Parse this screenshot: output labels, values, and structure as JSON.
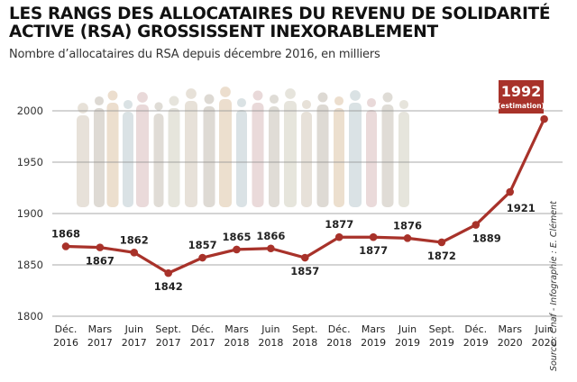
{
  "title": "LES RANGS DES ALLOCATAIRES DU REVENU DE SOLIDARITÉ ACTIVE (RSA) GROSSISSENT INEXORABLEMENT",
  "subtitle": "Nombre d’allocataires du RSA depuis décembre 2016, en milliers",
  "source": "Source : Cnaf - Infographie : E. Clément",
  "colors": {
    "line": "#a8322a",
    "callout_bg": "#a8322a",
    "grid": "#8c8c8c",
    "silhouettes": "#d9d5cf"
  },
  "chart_data": {
    "type": "line",
    "title": "LES RANGS DES ALLOCATAIRES DU REVENU DE SOLIDARITÉ ACTIVE (RSA) GROSSISSENT INEXORABLEMENT",
    "ylabel": "",
    "xlabel": "",
    "ylim": [
      1800,
      2000
    ],
    "yticks": [
      1800,
      1850,
      1900,
      1950,
      2000
    ],
    "grid": true,
    "categories": [
      {
        "line1": "Déc.",
        "line2": "2016"
      },
      {
        "line1": "Mars",
        "line2": "2017"
      },
      {
        "line1": "Juin",
        "line2": "2017"
      },
      {
        "line1": "Sept.",
        "line2": "2017"
      },
      {
        "line1": "Déc.",
        "line2": "2017"
      },
      {
        "line1": "Mars",
        "line2": "2018"
      },
      {
        "line1": "Juin",
        "line2": "2018"
      },
      {
        "line1": "Sept.",
        "line2": "2018"
      },
      {
        "line1": "Déc.",
        "line2": "2018"
      },
      {
        "line1": "Mars",
        "line2": "2019"
      },
      {
        "line1": "Juin",
        "line2": "2019"
      },
      {
        "line1": "Sept.",
        "line2": "2019"
      },
      {
        "line1": "Déc.",
        "line2": "2019"
      },
      {
        "line1": "Mars",
        "line2": "2020"
      },
      {
        "line1": "Juin",
        "line2": "2020"
      }
    ],
    "values": [
      1868,
      1867,
      1862,
      1842,
      1857,
      1865,
      1866,
      1857,
      1877,
      1877,
      1876,
      1872,
      1889,
      1921,
      1992
    ],
    "labels": [
      "1868",
      "1867",
      "1862",
      "1842",
      "1857",
      "1865",
      "1866",
      "1857",
      "1877",
      "1877",
      "1876",
      "1872",
      "1889",
      "1921",
      "1992"
    ],
    "callout": {
      "value": "1992",
      "note": "(estimation)"
    }
  }
}
